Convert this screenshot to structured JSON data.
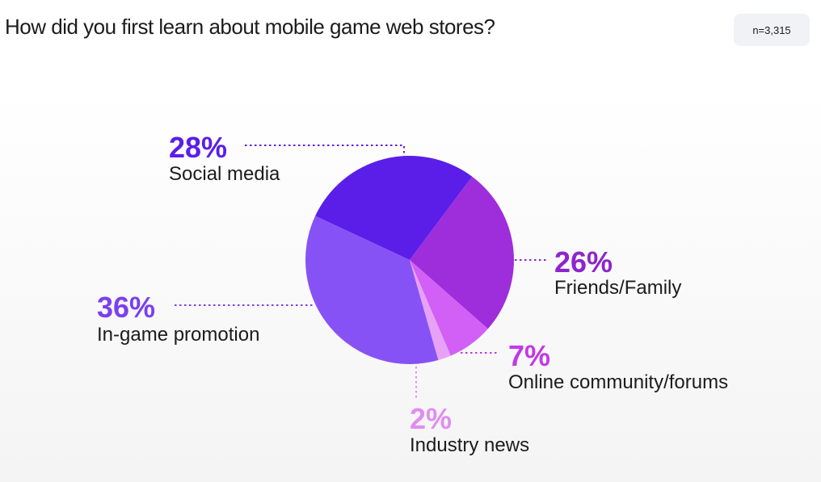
{
  "header": {
    "title": "How did you first learn about mobile game web stores?",
    "sample_size": "n=3,315"
  },
  "chart_data": {
    "type": "pie",
    "title": "How did you first learn about mobile game web stores?",
    "unit": "%",
    "slices": [
      {
        "label": "Social media",
        "value": 28,
        "value_label": "28%",
        "color": "#5b1ee8",
        "label_color": "#5b1ee8"
      },
      {
        "label": "Friends/Family",
        "value": 26,
        "value_label": "26%",
        "color": "#9e2ddb",
        "label_color": "#8e24cc"
      },
      {
        "label": "Online community/forums",
        "value": 7,
        "value_label": "7%",
        "color": "#d25ff6",
        "label_color": "#c13ae6"
      },
      {
        "label": "Industry news",
        "value": 2,
        "value_label": "2%",
        "color": "#e7a2f7",
        "label_color": "#e08df2"
      },
      {
        "label": "In-game promotion",
        "value": 36,
        "value_label": "36%",
        "color": "#8752f5",
        "label_color": "#7a40ee"
      }
    ]
  }
}
